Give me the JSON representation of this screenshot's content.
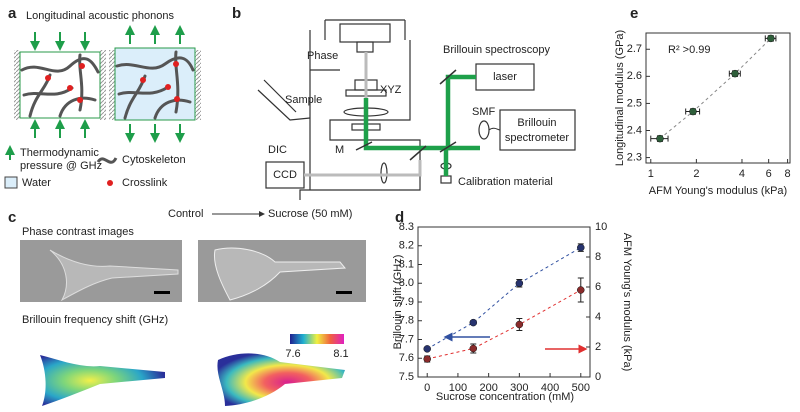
{
  "panels": {
    "a": {
      "label": "a",
      "title": "Longitudinal acoustic phonons",
      "pressure": [
        "Thermodynamic",
        "pressure @ GHz"
      ],
      "cytoskeleton": "Cytoskeleton",
      "water": "Water",
      "crosslink": "Crosslink"
    },
    "b": {
      "label": "b",
      "phase": "Phase",
      "spectroscopy": "Brillouin spectroscopy",
      "sample": "Sample",
      "xyz": "XYZ",
      "laser": "laser",
      "dic": "DIC",
      "smf": "SMF",
      "spectrometer": [
        "Brillouin",
        "spectrometer"
      ],
      "mirror": "M",
      "ccd": "CCD",
      "calibration": "Calibration material"
    },
    "c": {
      "label": "c",
      "control": "Control",
      "sucrose": "Sucrose (50 mM)",
      "phase_title": "Phase contrast images",
      "brillouin_title": "Brillouin frequency shift (GHz)",
      "colorbar": [
        7.6,
        8.1
      ]
    },
    "d": {
      "label": "d"
    },
    "e": {
      "label": "e"
    }
  },
  "chart_data": [
    {
      "type": "scatter",
      "x": [
        0,
        150,
        300,
        500
      ],
      "xlabel": "Sucrose concentration (mM)",
      "ylabel": "Brillouin shift (GHz)",
      "y2label": "AFM Young's modulus (kPa)",
      "xlim": [
        -30,
        530
      ],
      "xticks": [
        0,
        100,
        200,
        300,
        400,
        500
      ],
      "ylim": [
        7.5,
        8.3
      ],
      "yticks": [
        7.5,
        7.6,
        7.7,
        7.8,
        7.9,
        {
          "value": 8,
          "label": "8.0"
        },
        8.1,
        8.2,
        8.3
      ],
      "y2lim": [
        0,
        10
      ],
      "y2ticks": [
        0,
        2,
        4,
        6,
        8,
        10
      ],
      "series": [
        {
          "color": "#27336e",
          "values": [
            7.65,
            7.79,
            8.0,
            8.19
          ],
          "errors": [
            0.005,
            0.01,
            0.02,
            0.02
          ]
        },
        {
          "color": "#8a2b2b",
          "axis": "y2",
          "values": [
            1.2,
            1.9,
            3.5,
            5.8
          ],
          "errors": [
            0.2,
            0.3,
            0.4,
            0.8
          ]
        }
      ]
    },
    {
      "type": "scatter",
      "log_x": true,
      "x": [
        1.15,
        1.9,
        3.6,
        6.2
      ],
      "values": [
        2.37,
        2.47,
        2.61,
        2.74
      ],
      "x_errors": [
        0.15,
        0.2,
        0.3,
        0.5
      ],
      "errors": [
        0.01,
        0.01,
        0.01,
        0.01
      ],
      "color": "#2e5e3a",
      "xlabel": "AFM Young's modulus (kPa)",
      "ylabel": "Longitudinal modulus (GPa)",
      "annotation": "R² >0.99",
      "xlim": [
        0.93,
        8.3
      ],
      "xticks": [
        1,
        2,
        4,
        6,
        8
      ],
      "ylim": [
        2.28,
        2.76
      ],
      "yticks": [
        2.3,
        2.4,
        2.5,
        2.6,
        2.7
      ]
    }
  ]
}
